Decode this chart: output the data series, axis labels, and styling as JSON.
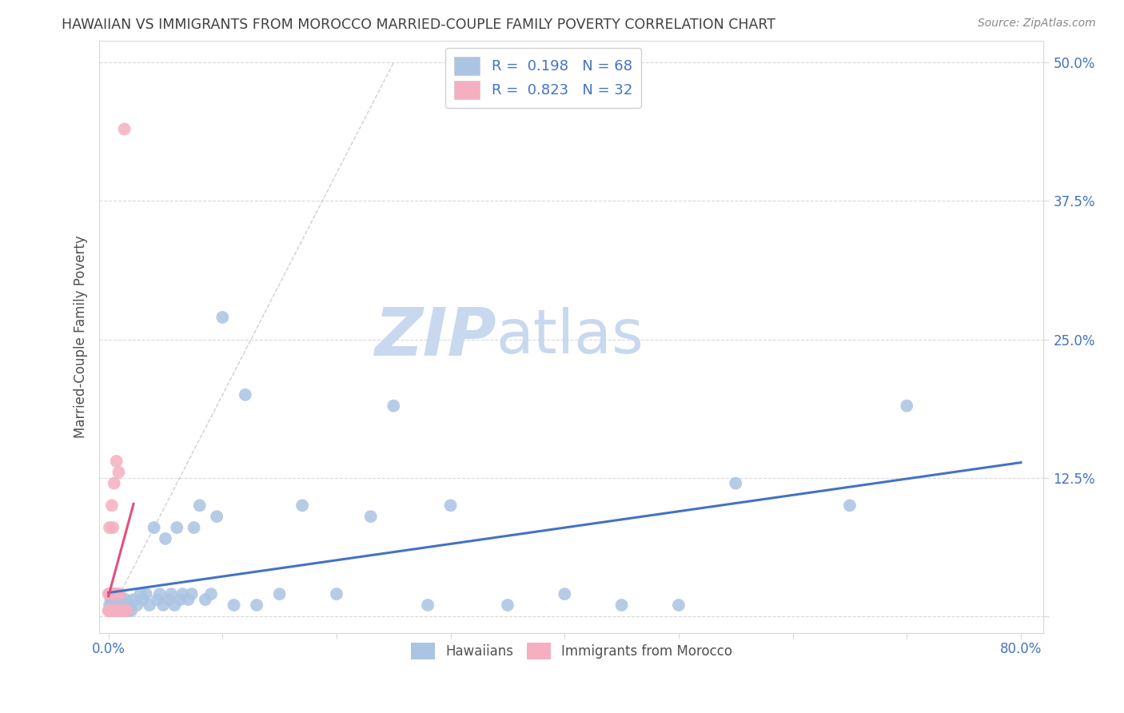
{
  "title": "HAWAIIAN VS IMMIGRANTS FROM MOROCCO MARRIED-COUPLE FAMILY POVERTY CORRELATION CHART",
  "source": "Source: ZipAtlas.com",
  "ylabel_label": "Married-Couple Family Poverty",
  "legend_hawaiians": "Hawaiians",
  "legend_morocco": "Immigrants from Morocco",
  "R_hawaiians": 0.198,
  "N_hawaiians": 68,
  "R_morocco": 0.823,
  "N_morocco": 32,
  "hawaii_color": "#aac4e2",
  "morocco_color": "#f5afc0",
  "hawaii_line_color": "#4472c4",
  "morocco_line_color": "#e05080",
  "grid_color": "#d8d8d8",
  "dash_color": "#d0d0d0",
  "watermark_text": "ZIPatlas",
  "watermark_color": "#d8e6f5",
  "title_color": "#404040",
  "tick_color": "#4472c4",
  "source_color": "#888888",
  "ylabel_color": "#505050",
  "xlim": [
    0.0,
    0.8
  ],
  "ylim": [
    0.0,
    0.5
  ],
  "yticks": [
    0.0,
    0.125,
    0.25,
    0.375,
    0.5
  ],
  "yticklabels": [
    "",
    "12.5%",
    "25.0%",
    "37.5%",
    "50.0%"
  ],
  "xticks": [
    0.0,
    0.1,
    0.2,
    0.3,
    0.4,
    0.5,
    0.6,
    0.7,
    0.8
  ],
  "xticklabels_show": {
    "0": "0.0%",
    "8": "80.0%"
  },
  "hawaii_x": [
    0.001,
    0.001,
    0.002,
    0.002,
    0.003,
    0.003,
    0.004,
    0.004,
    0.005,
    0.005,
    0.006,
    0.006,
    0.007,
    0.007,
    0.008,
    0.009,
    0.01,
    0.011,
    0.012,
    0.013,
    0.014,
    0.015,
    0.016,
    0.017,
    0.018,
    0.02,
    0.022,
    0.025,
    0.028,
    0.03,
    0.033,
    0.036,
    0.04,
    0.043,
    0.045,
    0.048,
    0.05,
    0.053,
    0.055,
    0.058,
    0.06,
    0.063,
    0.065,
    0.07,
    0.073,
    0.075,
    0.08,
    0.085,
    0.09,
    0.095,
    0.1,
    0.11,
    0.12,
    0.13,
    0.15,
    0.17,
    0.2,
    0.23,
    0.25,
    0.28,
    0.3,
    0.35,
    0.4,
    0.45,
    0.5,
    0.55,
    0.65,
    0.7
  ],
  "hawaii_y": [
    0.005,
    0.01,
    0.005,
    0.015,
    0.005,
    0.01,
    0.005,
    0.01,
    0.005,
    0.015,
    0.005,
    0.01,
    0.005,
    0.02,
    0.01,
    0.005,
    0.01,
    0.005,
    0.015,
    0.01,
    0.005,
    0.015,
    0.01,
    0.005,
    0.01,
    0.005,
    0.015,
    0.01,
    0.02,
    0.015,
    0.02,
    0.01,
    0.08,
    0.015,
    0.02,
    0.01,
    0.07,
    0.015,
    0.02,
    0.01,
    0.08,
    0.015,
    0.02,
    0.015,
    0.02,
    0.08,
    0.1,
    0.015,
    0.02,
    0.09,
    0.27,
    0.01,
    0.2,
    0.01,
    0.02,
    0.1,
    0.02,
    0.09,
    0.19,
    0.01,
    0.1,
    0.01,
    0.02,
    0.01,
    0.01,
    0.12,
    0.1,
    0.19
  ],
  "morocco_x": [
    0.0,
    0.0,
    0.001,
    0.001,
    0.001,
    0.002,
    0.002,
    0.003,
    0.003,
    0.003,
    0.004,
    0.004,
    0.004,
    0.005,
    0.005,
    0.005,
    0.006,
    0.006,
    0.007,
    0.007,
    0.008,
    0.008,
    0.009,
    0.009,
    0.01,
    0.01,
    0.011,
    0.012,
    0.013,
    0.014,
    0.015,
    0.016
  ],
  "morocco_y": [
    0.005,
    0.02,
    0.005,
    0.02,
    0.08,
    0.005,
    0.02,
    0.005,
    0.02,
    0.1,
    0.005,
    0.02,
    0.08,
    0.005,
    0.02,
    0.12,
    0.005,
    0.02,
    0.005,
    0.14,
    0.005,
    0.02,
    0.005,
    0.13,
    0.005,
    0.02,
    0.005,
    0.005,
    0.005,
    0.44,
    0.005,
    0.005
  ]
}
